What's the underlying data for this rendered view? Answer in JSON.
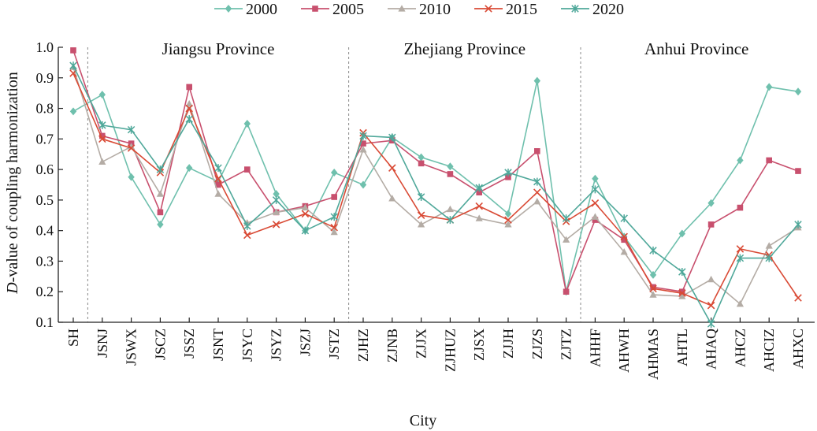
{
  "chart_data": {
    "type": "line",
    "xlabel": "City",
    "ylabel_italic": "D",
    "ylabel_rest": "-value of coupling harmonization",
    "ylim": [
      0.1,
      1.0
    ],
    "yticks": [
      "0.1",
      "0.2",
      "0.3",
      "0.4",
      "0.5",
      "0.6",
      "0.7",
      "0.8",
      "0.9",
      "1.0"
    ],
    "legend_position": "top-center",
    "categories": [
      "SH",
      "JSNJ",
      "JSWX",
      "JSCZ",
      "JSSZ",
      "JSNT",
      "JSYC",
      "JSYZ",
      "JSZJ",
      "JSTZ",
      "ZJHZ",
      "ZJNB",
      "ZJJX",
      "ZJHUZ",
      "ZJSX",
      "ZJJH",
      "ZJZS",
      "ZJTZ",
      "AHHF",
      "AHWH",
      "AHMAS",
      "AHTL",
      "AHAQ",
      "AHCZ",
      "AHCIZ",
      "AHXC"
    ],
    "regions": [
      {
        "label": "Jiangsu Province",
        "start": 1,
        "end": 9
      },
      {
        "label": "Zhejiang Province",
        "start": 10,
        "end": 17
      },
      {
        "label": "Anhui Province",
        "start": 18,
        "end": 25
      }
    ],
    "series": [
      {
        "name": "2000",
        "color": "#6fc0ad",
        "marker": "diamond",
        "values": [
          0.79,
          0.845,
          0.575,
          0.42,
          0.605,
          0.56,
          0.75,
          0.52,
          0.4,
          0.59,
          0.55,
          0.705,
          0.64,
          0.61,
          0.535,
          0.455,
          0.89,
          0.2,
          0.57,
          0.38,
          0.255,
          0.39,
          0.49,
          0.63,
          0.87,
          0.855
        ]
      },
      {
        "name": "2005",
        "color": "#c8506e",
        "marker": "square",
        "values": [
          0.99,
          0.71,
          0.685,
          0.46,
          0.87,
          0.55,
          0.6,
          0.46,
          0.48,
          0.51,
          0.685,
          0.695,
          0.62,
          0.585,
          0.525,
          0.575,
          0.66,
          0.2,
          0.435,
          0.37,
          0.215,
          0.2,
          0.42,
          0.475,
          0.63,
          0.595
        ]
      },
      {
        "name": "2010",
        "color": "#b4aca5",
        "marker": "triangle",
        "values": [
          0.935,
          0.625,
          0.675,
          0.52,
          0.815,
          0.52,
          0.425,
          0.46,
          0.475,
          0.395,
          0.665,
          0.505,
          0.42,
          0.47,
          0.44,
          0.42,
          0.495,
          0.37,
          0.445,
          0.33,
          0.19,
          0.185,
          0.24,
          0.16,
          0.35,
          0.41
        ]
      },
      {
        "name": "2015",
        "color": "#d94a35",
        "marker": "x",
        "values": [
          0.915,
          0.7,
          0.67,
          0.59,
          0.8,
          0.57,
          0.385,
          0.42,
          0.455,
          0.41,
          0.72,
          0.605,
          0.45,
          0.435,
          0.48,
          0.435,
          0.525,
          0.43,
          0.49,
          0.38,
          0.21,
          0.195,
          0.155,
          0.34,
          0.32,
          0.18
        ]
      },
      {
        "name": "2020",
        "color": "#4fa89a",
        "marker": "star",
        "values": [
          0.94,
          0.745,
          0.73,
          0.6,
          0.765,
          0.605,
          0.415,
          0.5,
          0.4,
          0.445,
          0.71,
          0.705,
          0.51,
          0.435,
          0.54,
          0.59,
          0.56,
          0.44,
          0.535,
          0.44,
          0.335,
          0.265,
          0.095,
          0.31,
          0.31,
          0.42
        ]
      }
    ]
  }
}
